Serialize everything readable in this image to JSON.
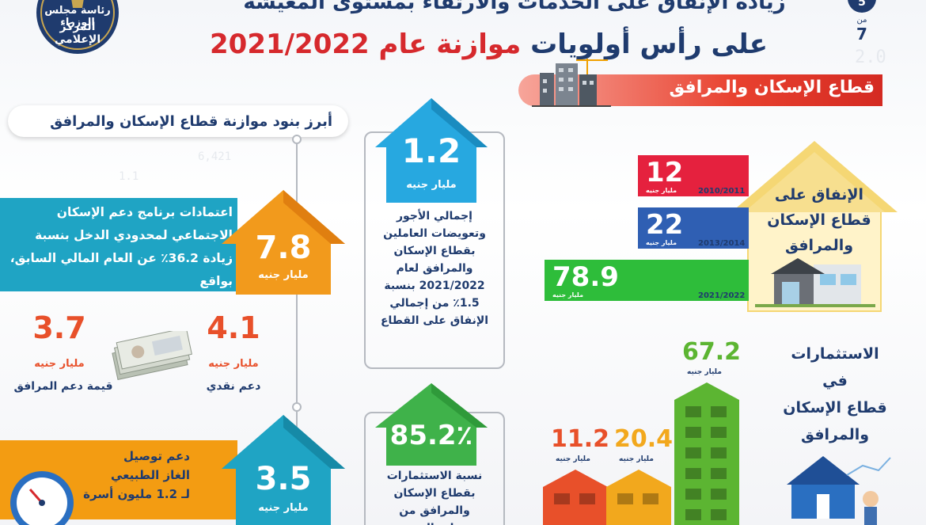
{
  "header": {
    "title_line1": "زيادة الإنفاق على الخدمات والارتقاء بمستوى المعيشة",
    "title_line2_prefix": "على رأس أولويات ",
    "title_line2_highlight": "موازنة عام ",
    "title_line2_year": "2021/2022",
    "page_current": "5",
    "page_of": "من",
    "page_total": "7",
    "logo_line1": "رئاسة مجلس الوزراء",
    "logo_line2": "المركز الإعلامي"
  },
  "sector_banner": {
    "label": "قطاع الإسكان والمرافق"
  },
  "left_header": {
    "label": "أبرز بنود موازنة قطاع الإسكان والمرافق"
  },
  "unit_label": "مليار جنيه",
  "social_housing": {
    "value": "7.8",
    "text": "اعتمادات برنامج دعم الإسكان الاجتماعي لمحدودي الدخل بنسبة زيادة 36.2٪ عن العام المالي السابق، بواقع"
  },
  "support_items": [
    {
      "value": "4.1",
      "label": "دعم نقدي"
    },
    {
      "value": "3.7",
      "label": "قيمة دعم المرافق"
    }
  ],
  "gas": {
    "value": "3.5",
    "text_line1": "دعم توصيل",
    "text_line2": "الغاز الطبيعي",
    "text_line3": "لـ 1.2 مليون أسرة"
  },
  "wages": {
    "value": "1.2",
    "text": "إجمالي الأجور وتعويضات العاملين بقطاع الإسكان والمرافق لعام 2021/2022 بنسبة 1.5٪ من إجمالي الإنفاق على القطاع"
  },
  "investment_share": {
    "value": "85.2٪",
    "text": "نسبة الاستثمارات بقطاع الإسكان والمرافق من إجمالي"
  },
  "spending": {
    "title_line1": "الإنفاق على",
    "title_line2": "قطاع الإسكان",
    "title_line3": "والمرافق",
    "bars": [
      {
        "year": "2010/2011",
        "value": "12",
        "color": "#e5213e"
      },
      {
        "year": "2013/2014",
        "value": "22",
        "color": "#2f5fb3"
      },
      {
        "year": "2021/2022",
        "value": "78.9",
        "color": "#2ebd3a"
      }
    ]
  },
  "investments": {
    "title_line1": "الاستثمارات",
    "title_line2": "في",
    "title_line3": "قطاع الإسكان",
    "title_line4": "والمرافق",
    "bars": [
      {
        "value": "11.2",
        "color": "#e8502a"
      },
      {
        "value": "20.4",
        "color": "#f2a81d"
      },
      {
        "value": "67.2",
        "color": "#5cb532"
      }
    ]
  }
}
